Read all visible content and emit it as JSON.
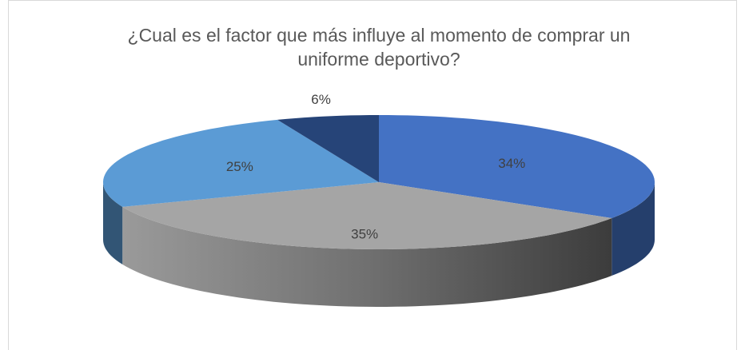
{
  "chart_data": {
    "type": "pie3d",
    "title": [
      "¿Cual es el factor que más influye al momento de comprar un",
      "uniforme deportivo?"
    ],
    "values": [
      34,
      35,
      25,
      6
    ],
    "value_labels": [
      "34%",
      "35%",
      "25%",
      "6%"
    ],
    "colors": [
      "#4472c4",
      "#a5a5a5",
      "#5b9bd5",
      "#264478"
    ]
  }
}
